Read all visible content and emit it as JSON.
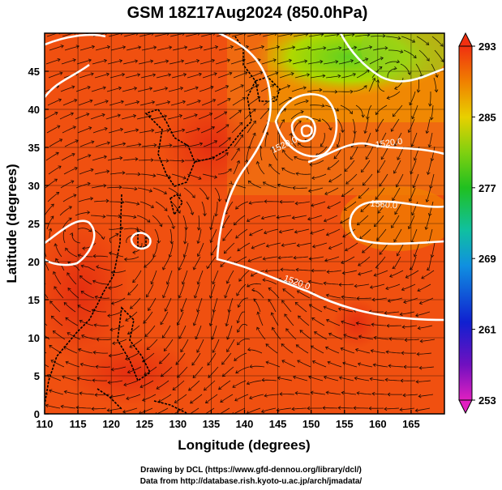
{
  "chart_data": {
    "type": "heatmap",
    "title": "GSM 18Z17Aug2024 (850.0hPa)",
    "xlabel": "Longitude (degrees)",
    "ylabel": "Latitude  (degrees)",
    "xlim": [
      110,
      170
    ],
    "ylim": [
      0,
      50
    ],
    "xticks": [
      "110",
      "115",
      "120",
      "125",
      "130",
      "135",
      "140",
      "145",
      "150",
      "155",
      "160",
      "165"
    ],
    "yticks": [
      "0",
      "5",
      "10",
      "15",
      "20",
      "25",
      "30",
      "35",
      "40",
      "45"
    ],
    "colorbar": {
      "ticks": [
        "293",
        "285",
        "277",
        "269",
        "261",
        "253"
      ],
      "range": [
        253,
        293
      ],
      "colors": [
        "#e020c0",
        "#7010c0",
        "#1020d0",
        "#1090e0",
        "#10c0a0",
        "#20c020",
        "#80d010",
        "#e8d000",
        "#f08000",
        "#f03010"
      ]
    },
    "contour_labels": [
      "1520.0",
      "1520.0",
      "1560.0",
      "1520.0"
    ],
    "grid": true
  },
  "credits": {
    "line1": "Drawing by DCL (https://www.gfd-dennou.org/library/dcl/)",
    "line2": "Data from http://database.rish.kyoto-u.ac.jp/arch/jmadata/"
  }
}
